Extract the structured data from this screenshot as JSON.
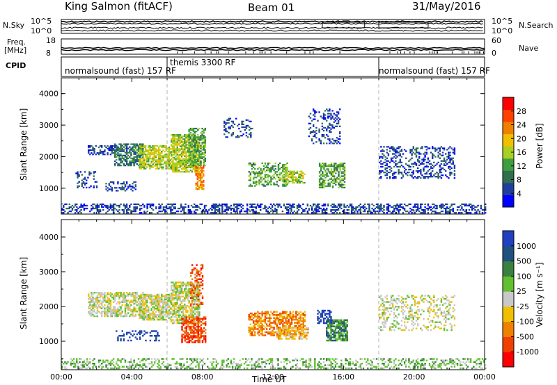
{
  "header": {
    "station": "King Salmon (fitACF)",
    "beam": "Beam 01",
    "date": "31/May/2016"
  },
  "noise_panel": {
    "left_label": "N.Sky",
    "right_label": "N.Search",
    "ticks_left": [
      "10^5",
      "10^0"
    ],
    "ticks_right": [
      "10^5",
      "10^0"
    ]
  },
  "freq_panel": {
    "left_label_1": "Freq.",
    "left_label_2": "[MHz]",
    "right_label": "Nave",
    "ticks_left": [
      "18",
      "8"
    ],
    "ticks_right": [
      "60",
      "0"
    ]
  },
  "cpid_panel": {
    "label": "CPID",
    "segments": [
      {
        "label": "normalsound (fast) 157 RF",
        "start": 0,
        "end": 6
      },
      {
        "label": "themis 3300 RF",
        "start": 6,
        "end": 18
      },
      {
        "label": "normalsound (fast) 157 RF",
        "start": 18,
        "end": 24
      }
    ]
  },
  "colors": {
    "power": [
      "#0000ff",
      "#1f3f9f",
      "#2f6f4f",
      "#3f9f3f",
      "#a8d020",
      "#f0c000",
      "#f08000",
      "#ff4000",
      "#ff0000"
    ],
    "velocity": [
      "#2040c0",
      "#205080",
      "#3a8040",
      "#60c030",
      "#c8c8c8",
      "#f0c000",
      "#f08000",
      "#f04000",
      "#ff0000"
    ]
  },
  "chart_data": [
    {
      "type": "heatmap",
      "panel": "power",
      "ylabel": "Slant Range [km]",
      "xlim": [
        0,
        24
      ],
      "ylim": [
        180,
        4500
      ],
      "yticks": [
        "1000",
        "2000",
        "3000",
        "4000"
      ],
      "colorbar_label": "Power [dB]",
      "colorbar_ticks": [
        "4",
        "8",
        "12",
        "16",
        "20",
        "24",
        "28"
      ],
      "colorbar_range": [
        0,
        30
      ],
      "clusters": [
        {
          "t0": 1.5,
          "t1": 3.2,
          "r0": 2050,
          "r1": 2350,
          "level": 1,
          "density": 0.55
        },
        {
          "t0": 3.0,
          "t1": 4.6,
          "r0": 1700,
          "r1": 2400,
          "level": 2,
          "density": 0.65
        },
        {
          "t0": 4.4,
          "t1": 6.2,
          "r0": 1600,
          "r1": 2350,
          "level": 4,
          "density": 0.75
        },
        {
          "t0": 6.2,
          "t1": 7.8,
          "r0": 1500,
          "r1": 2700,
          "level": 4,
          "density": 0.75
        },
        {
          "t0": 7.2,
          "t1": 8.2,
          "r0": 1700,
          "r1": 2900,
          "level": 3,
          "density": 0.6
        },
        {
          "t0": 7.6,
          "t1": 8.1,
          "r0": 950,
          "r1": 1700,
          "level": 6,
          "density": 0.7
        },
        {
          "t0": 9.2,
          "t1": 10.8,
          "r0": 2600,
          "r1": 3200,
          "level": 1,
          "density": 0.25
        },
        {
          "t0": 10.6,
          "t1": 12.8,
          "r0": 1050,
          "r1": 1800,
          "level": 3,
          "density": 0.45
        },
        {
          "t0": 12.5,
          "t1": 13.8,
          "r0": 1150,
          "r1": 1550,
          "level": 4,
          "density": 0.55
        },
        {
          "t0": 14.6,
          "t1": 16.1,
          "r0": 1000,
          "r1": 1800,
          "level": 3,
          "density": 0.6
        },
        {
          "t0": 14.0,
          "t1": 15.8,
          "r0": 2400,
          "r1": 3500,
          "level": 1,
          "density": 0.25
        },
        {
          "t0": 18.0,
          "t1": 22.3,
          "r0": 1300,
          "r1": 2300,
          "level": 1,
          "density": 0.35
        },
        {
          "t0": 0.8,
          "t1": 2.0,
          "r0": 1000,
          "r1": 1500,
          "level": 1,
          "density": 0.25
        },
        {
          "t0": 2.5,
          "t1": 4.2,
          "r0": 900,
          "r1": 1200,
          "level": 1,
          "density": 0.35
        },
        {
          "t0": 0.0,
          "t1": 24.0,
          "r0": 200,
          "r1": 500,
          "level": 1,
          "density": 0.45
        }
      ]
    },
    {
      "type": "heatmap",
      "panel": "velocity",
      "ylabel": "Slant Range [km]",
      "xlabel": "Time UT",
      "xlim": [
        0,
        24
      ],
      "ylim": [
        180,
        4500
      ],
      "xticks": [
        "00:00",
        "04:00",
        "08:00",
        "12:00",
        "16:00",
        "20:00",
        "00:00"
      ],
      "yticks": [
        "1000",
        "2000",
        "3000",
        "4000"
      ],
      "colorbar_label": "Velocity [m s⁻¹]",
      "colorbar_ticks": [
        "1000",
        "500",
        "100",
        "25",
        "-25",
        "-100",
        "-500",
        "-1000"
      ],
      "colorbar_range": [
        -1000,
        1000
      ],
      "clusters": [
        {
          "t0": 1.5,
          "t1": 4.6,
          "r0": 1700,
          "r1": 2400,
          "level": 4,
          "density": 0.6
        },
        {
          "t0": 4.4,
          "t1": 6.2,
          "r0": 1600,
          "r1": 2350,
          "level": 4,
          "density": 0.75
        },
        {
          "t0": 6.2,
          "t1": 7.8,
          "r0": 1500,
          "r1": 2700,
          "level": 4,
          "density": 0.7
        },
        {
          "t0": 6.8,
          "t1": 8.2,
          "r0": 950,
          "r1": 1700,
          "level": 7,
          "density": 0.65
        },
        {
          "t0": 7.3,
          "t1": 8.0,
          "r0": 2000,
          "r1": 3200,
          "level": 7,
          "density": 0.35
        },
        {
          "t0": 10.6,
          "t1": 13.8,
          "r0": 1150,
          "r1": 1850,
          "level": 6,
          "density": 0.6
        },
        {
          "t0": 12.2,
          "t1": 14.0,
          "r0": 1050,
          "r1": 1400,
          "level": 5,
          "density": 0.55
        },
        {
          "t0": 15.0,
          "t1": 16.2,
          "r0": 1000,
          "r1": 1600,
          "level": 2,
          "density": 0.75
        },
        {
          "t0": 14.5,
          "t1": 15.3,
          "r0": 1500,
          "r1": 1900,
          "level": 0,
          "density": 0.6
        },
        {
          "t0": 18.0,
          "t1": 22.3,
          "r0": 1300,
          "r1": 2300,
          "level": 4,
          "density": 0.3
        },
        {
          "t0": 3.0,
          "t1": 5.5,
          "r0": 1000,
          "r1": 1300,
          "level": 0,
          "density": 0.3
        },
        {
          "t0": 0.0,
          "t1": 24.0,
          "r0": 200,
          "r1": 500,
          "level": 3,
          "density": 0.35
        }
      ]
    }
  ]
}
